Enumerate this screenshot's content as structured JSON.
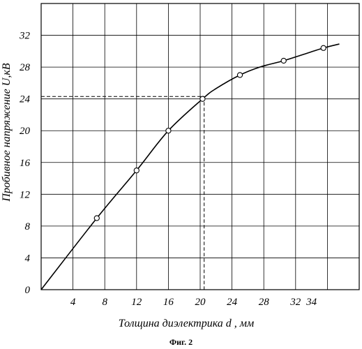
{
  "chart_data": {
    "type": "line",
    "xlabel": "Толщина диэлектрика d , мм",
    "ylabel": "Пробивное напряжение  U,кВ",
    "x_ticks": [
      "4",
      "8",
      "12",
      "16",
      "20",
      "24",
      "28",
      "32",
      "34"
    ],
    "y_ticks": [
      "0",
      "4",
      "8",
      "12",
      "16",
      "20",
      "24",
      "28",
      "32"
    ],
    "xlim": [
      0,
      40
    ],
    "ylim": [
      0,
      36
    ],
    "grid": true,
    "series": [
      {
        "points": [
          [
            7,
            9
          ],
          [
            12,
            15
          ],
          [
            16,
            20
          ],
          [
            20.3,
            24
          ],
          [
            25,
            27
          ],
          [
            30.5,
            28.8
          ],
          [
            35.5,
            30.4
          ]
        ]
      }
    ],
    "curve": [
      [
        0,
        0
      ],
      [
        7,
        9
      ],
      [
        12,
        15
      ],
      [
        16,
        20
      ],
      [
        20.3,
        24
      ],
      [
        22,
        25.3
      ],
      [
        25,
        27
      ],
      [
        27.5,
        28
      ],
      [
        30.5,
        28.8
      ],
      [
        33,
        29.6
      ],
      [
        35.5,
        30.4
      ],
      [
        37.5,
        30.9
      ]
    ],
    "reference_point": [
      20.5,
      24.3
    ]
  },
  "caption": "Фиг. 2"
}
